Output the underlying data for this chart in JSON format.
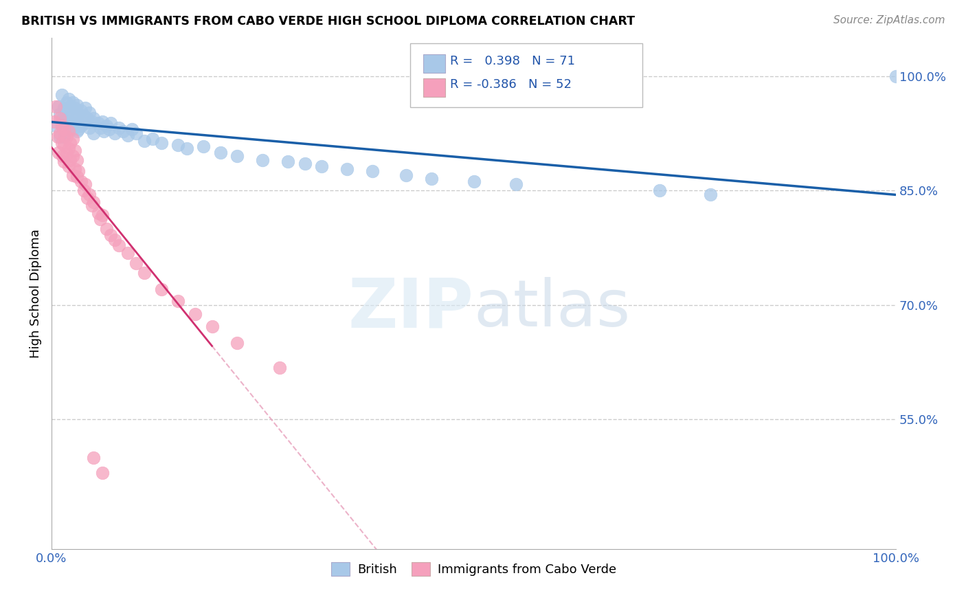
{
  "title": "BRITISH VS IMMIGRANTS FROM CABO VERDE HIGH SCHOOL DIPLOMA CORRELATION CHART",
  "source": "Source: ZipAtlas.com",
  "ylabel": "High School Diploma",
  "xlim": [
    0.0,
    1.0
  ],
  "ylim": [
    0.38,
    1.05
  ],
  "xtick_labels": [
    "0.0%",
    "100.0%"
  ],
  "ytick_labels": [
    "55.0%",
    "70.0%",
    "85.0%",
    "100.0%"
  ],
  "ytick_positions": [
    0.55,
    0.7,
    0.85,
    1.0
  ],
  "british_color": "#a8c8e8",
  "cabo_verde_color": "#f5a0bc",
  "british_line_color": "#1a5fa8",
  "cabo_verde_line_color": "#d03070",
  "cabo_verde_dash_color": "#e8a0bc",
  "r_british": 0.398,
  "n_british": 71,
  "r_cabo": -0.386,
  "n_cabo": 52,
  "british_x": [
    0.005,
    0.008,
    0.01,
    0.01,
    0.012,
    0.013,
    0.015,
    0.015,
    0.015,
    0.018,
    0.018,
    0.02,
    0.02,
    0.02,
    0.022,
    0.022,
    0.025,
    0.025,
    0.025,
    0.028,
    0.028,
    0.03,
    0.03,
    0.03,
    0.032,
    0.032,
    0.035,
    0.035,
    0.038,
    0.04,
    0.04,
    0.042,
    0.045,
    0.045,
    0.048,
    0.05,
    0.05,
    0.055,
    0.058,
    0.06,
    0.062,
    0.065,
    0.068,
    0.07,
    0.075,
    0.08,
    0.085,
    0.09,
    0.095,
    0.1,
    0.11,
    0.12,
    0.13,
    0.15,
    0.16,
    0.18,
    0.2,
    0.22,
    0.25,
    0.28,
    0.3,
    0.32,
    0.35,
    0.38,
    0.42,
    0.45,
    0.5,
    0.55,
    0.72,
    0.78,
    1.0
  ],
  "british_y": [
    0.935,
    0.96,
    0.95,
    0.92,
    0.975,
    0.945,
    0.958,
    0.94,
    0.92,
    0.965,
    0.945,
    0.97,
    0.955,
    0.935,
    0.96,
    0.94,
    0.965,
    0.948,
    0.93,
    0.958,
    0.938,
    0.962,
    0.945,
    0.928,
    0.95,
    0.93,
    0.955,
    0.935,
    0.948,
    0.958,
    0.938,
    0.945,
    0.952,
    0.932,
    0.94,
    0.945,
    0.925,
    0.938,
    0.932,
    0.94,
    0.928,
    0.935,
    0.93,
    0.938,
    0.925,
    0.932,
    0.928,
    0.922,
    0.93,
    0.925,
    0.915,
    0.918,
    0.912,
    0.91,
    0.905,
    0.908,
    0.9,
    0.895,
    0.89,
    0.888,
    0.885,
    0.882,
    0.878,
    0.875,
    0.87,
    0.865,
    0.862,
    0.858,
    0.85,
    0.845,
    1.0
  ],
  "cabo_x": [
    0.003,
    0.005,
    0.007,
    0.008,
    0.01,
    0.01,
    0.012,
    0.012,
    0.013,
    0.015,
    0.015,
    0.015,
    0.018,
    0.018,
    0.02,
    0.02,
    0.02,
    0.022,
    0.022,
    0.025,
    0.025,
    0.025,
    0.028,
    0.028,
    0.03,
    0.03,
    0.032,
    0.035,
    0.038,
    0.04,
    0.042,
    0.045,
    0.048,
    0.05,
    0.055,
    0.058,
    0.06,
    0.065,
    0.07,
    0.075,
    0.08,
    0.09,
    0.1,
    0.11,
    0.13,
    0.15,
    0.17,
    0.19,
    0.22,
    0.27,
    0.05,
    0.06
  ],
  "cabo_y": [
    0.94,
    0.96,
    0.92,
    0.9,
    0.945,
    0.925,
    0.935,
    0.912,
    0.895,
    0.93,
    0.91,
    0.888,
    0.92,
    0.898,
    0.928,
    0.905,
    0.882,
    0.912,
    0.89,
    0.918,
    0.895,
    0.87,
    0.902,
    0.878,
    0.89,
    0.868,
    0.875,
    0.862,
    0.85,
    0.858,
    0.84,
    0.845,
    0.83,
    0.835,
    0.82,
    0.812,
    0.818,
    0.8,
    0.792,
    0.785,
    0.778,
    0.768,
    0.755,
    0.742,
    0.72,
    0.705,
    0.688,
    0.672,
    0.65,
    0.618,
    0.5,
    0.48
  ]
}
